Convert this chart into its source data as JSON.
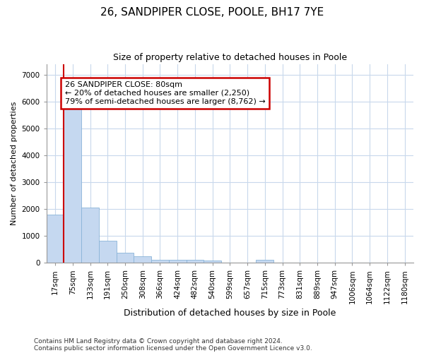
{
  "title1": "26, SANDPIPER CLOSE, POOLE, BH17 7YE",
  "title2": "Size of property relative to detached houses in Poole",
  "xlabel": "Distribution of detached houses by size in Poole",
  "ylabel": "Number of detached properties",
  "footnote1": "Contains HM Land Registry data © Crown copyright and database right 2024.",
  "footnote2": "Contains public sector information licensed under the Open Government Licence v3.0.",
  "annotation_line1": "26 SANDPIPER CLOSE: 80sqm",
  "annotation_line2": "← 20% of detached houses are smaller (2,250)",
  "annotation_line3": "79% of semi-detached houses are larger (8,762) →",
  "bar_color": "#c5d8f0",
  "bar_edge_color": "#8ab4d8",
  "line_color": "#cc0000",
  "annotation_box_color": "#cc0000",
  "grid_color": "#c8d8ec",
  "background_color": "#ffffff",
  "fig_background_color": "#ffffff",
  "x_labels": [
    "17sqm",
    "75sqm",
    "133sqm",
    "191sqm",
    "250sqm",
    "308sqm",
    "366sqm",
    "424sqm",
    "482sqm",
    "540sqm",
    "599sqm",
    "657sqm",
    "715sqm",
    "773sqm",
    "831sqm",
    "889sqm",
    "947sqm",
    "1006sqm",
    "1064sqm",
    "1122sqm",
    "1180sqm"
  ],
  "bar_values": [
    1800,
    5800,
    2060,
    830,
    370,
    240,
    120,
    110,
    100,
    75,
    0,
    0,
    100,
    0,
    0,
    0,
    0,
    0,
    0,
    0,
    0
  ],
  "ylim": [
    0,
    7400
  ],
  "yticks": [
    0,
    1000,
    2000,
    3000,
    4000,
    5000,
    6000,
    7000
  ],
  "title1_fontsize": 11,
  "title2_fontsize": 9,
  "ylabel_fontsize": 8,
  "xlabel_fontsize": 9,
  "tick_fontsize": 7.5,
  "footnote_fontsize": 6.5
}
